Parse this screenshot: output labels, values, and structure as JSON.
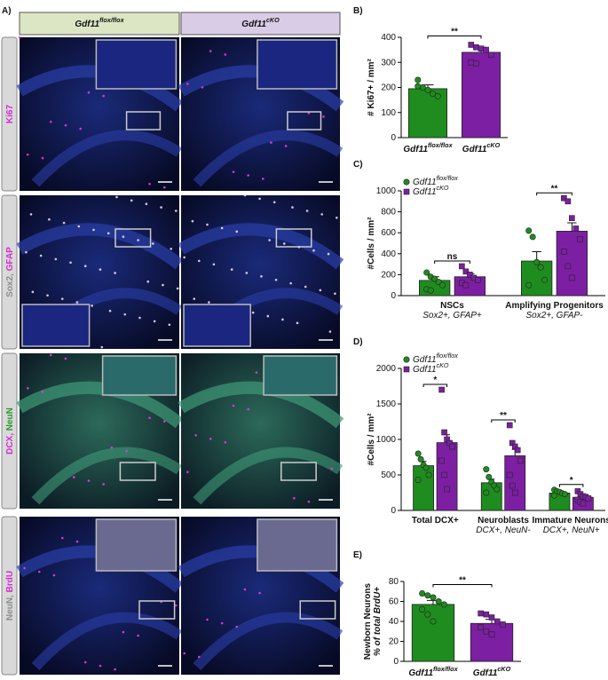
{
  "panel_a": {
    "label": "A)",
    "columns": [
      {
        "name": "Gdf11",
        "sup": "flox/flox",
        "color": "#dde6c4"
      },
      {
        "name": "Gdf11",
        "sup": "cKO",
        "color": "#d8cce6"
      }
    ],
    "rows": [
      {
        "label_parts": [
          {
            "text": "Ki67",
            "color": "#d12fd1"
          }
        ]
      },
      {
        "label_parts": [
          {
            "text": "Sox2, ",
            "color": "#8c8c8c"
          },
          {
            "text": "GFAP",
            "color": "#d12fd1"
          }
        ]
      },
      {
        "label_parts": [
          {
            "text": "DCX, ",
            "color": "#d12fd1"
          },
          {
            "text": "NeuN",
            "color": "#2a9a2a"
          }
        ]
      },
      {
        "label_parts": [
          {
            "text": "NeuN, ",
            "color": "#8c8c8c"
          },
          {
            "text": "BrdU",
            "color": "#d12fd1"
          }
        ]
      }
    ]
  },
  "chart_data": [
    {
      "type": "bar",
      "label": "B)",
      "ylabel": [
        "# Ki67+ / mm²"
      ],
      "categories": [
        "Gdf11",
        "Gdf11"
      ],
      "category_sups": [
        "flox/flox",
        "cKO"
      ],
      "values": [
        195,
        340
      ],
      "errors": [
        15,
        20
      ],
      "points": [
        [
          230,
          200,
          190,
          175,
          165,
          205
        ],
        [
          370,
          360,
          355,
          350,
          330,
          300,
          295
        ]
      ],
      "colors": [
        "#1f8c1f",
        "#7d1fa3"
      ],
      "markers": [
        "circle",
        "square"
      ],
      "significance": "**",
      "ylim": [
        0,
        400
      ],
      "yticks": [
        0,
        100,
        200,
        300,
        400
      ]
    },
    {
      "type": "bar",
      "label": "C)",
      "ylabel": [
        "#Cells / mm²"
      ],
      "categories": [
        "NSCs",
        "Amplifying Progenitors"
      ],
      "category_subtitles": [
        "Sox2+, GFAP+",
        "Sox2+, GFAP-"
      ],
      "series": [
        {
          "name": "Gdf11",
          "sup": "flox/flox",
          "color": "#1f8c1f",
          "marker": "circle",
          "values": [
            145,
            330
          ],
          "errors": [
            35,
            90
          ],
          "points": [
            [
              220,
              180,
              160,
              130,
              100,
              60,
              50
            ],
            [
              620,
              560,
              320,
              270,
              150,
              100
            ]
          ]
        },
        {
          "name": "Gdf11",
          "sup": "cKO",
          "color": "#7d1fa3",
          "marker": "square",
          "values": [
            180,
            615
          ],
          "errors": [
            30,
            80
          ],
          "points": [
            [
              280,
              230,
              200,
              170,
              150,
              120,
              100
            ],
            [
              930,
              900,
              740,
              640,
              540,
              420,
              280,
              170
            ]
          ]
        }
      ],
      "significance": [
        "ns",
        "**"
      ],
      "ylim": [
        0,
        1000
      ],
      "yticks": [
        0,
        200,
        400,
        600,
        800,
        1000
      ]
    },
    {
      "type": "bar",
      "label": "D)",
      "ylabel": [
        "#Cells / mm²"
      ],
      "categories": [
        "Total DCX+",
        "Neuroblasts",
        "Immature Neurons"
      ],
      "category_subtitles": [
        null,
        "DCX+, NeuN-",
        "DCX+, NeuN+"
      ],
      "series": [
        {
          "name": "Gdf11",
          "sup": "flox/flox",
          "color": "#1f8c1f",
          "marker": "circle",
          "values": [
            630,
            390,
            245
          ],
          "errors": [
            60,
            50,
            15
          ],
          "points": [
            [
              800,
              720,
              640,
              600,
              500,
              430
            ],
            [
              580,
              470,
              400,
              350,
              300,
              250
            ],
            [
              290,
              270,
              260,
              240,
              230,
              210
            ]
          ]
        },
        {
          "name": "Gdf11",
          "sup": "cKO",
          "color": "#7d1fa3",
          "marker": "square",
          "values": [
            955,
            770,
            185
          ],
          "errors": [
            110,
            90,
            20
          ],
          "points": [
            [
              1700,
              1100,
              1000,
              950,
              900,
              700,
              500,
              300
            ],
            [
              1200,
              950,
              900,
              850,
              700,
              500,
              350,
              250
            ],
            [
              270,
              230,
              200,
              190,
              170,
              150,
              120,
              100
            ]
          ]
        }
      ],
      "significance": [
        "*",
        "**",
        "*"
      ],
      "ylim": [
        0,
        2000
      ],
      "yticks": [
        0,
        500,
        1000,
        1500,
        2000
      ]
    },
    {
      "type": "bar",
      "label": "E)",
      "ylabel": [
        "Newborn Neurons",
        "% of total BrdU+"
      ],
      "categories": [
        "Gdf11",
        "Gdf11"
      ],
      "category_sups": [
        "flox/flox",
        "cKO"
      ],
      "values": [
        57,
        38
      ],
      "errors": [
        4,
        4
      ],
      "points": [
        [
          68,
          66,
          64,
          60,
          57,
          52,
          47,
          40
        ],
        [
          48,
          47,
          44,
          40,
          37,
          34,
          30,
          27
        ]
      ],
      "colors": [
        "#1f8c1f",
        "#7d1fa3"
      ],
      "markers": [
        "circle",
        "square"
      ],
      "significance": "**",
      "ylim": [
        0,
        80
      ],
      "yticks": [
        0,
        20,
        40,
        60,
        80
      ]
    }
  ]
}
